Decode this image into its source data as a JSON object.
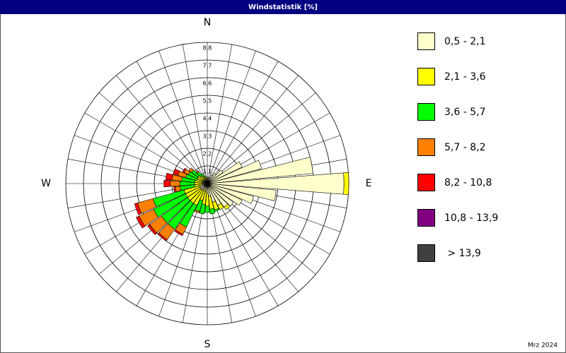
{
  "chart_data": {
    "type": "windrose",
    "title": "Windstatistik [%]",
    "footer": "Mrz 2024",
    "compass_labels": [
      {
        "value": 0,
        "label": "N"
      },
      {
        "value": 90,
        "label": "E"
      },
      {
        "value": 180,
        "label": "S"
      },
      {
        "value": 270,
        "label": "W"
      }
    ],
    "x": [
      0,
      10,
      20,
      30,
      40,
      50,
      60,
      70,
      80,
      90,
      100,
      110,
      120,
      130,
      140,
      150,
      160,
      170,
      180,
      190,
      200,
      210,
      220,
      230,
      240,
      250,
      260,
      270,
      280,
      290,
      300,
      310,
      320,
      330,
      340,
      350
    ],
    "xlim": [
      0,
      360
    ],
    "ylim": [
      0,
      8.8
    ],
    "yticks": [
      {
        "value": 1.1,
        "label": "1,1"
      },
      {
        "value": 2.2,
        "label": "2,2"
      },
      {
        "value": 3.3,
        "label": "3,3"
      },
      {
        "value": 4.4,
        "label": "4,4"
      },
      {
        "value": 5.5,
        "label": "5,5"
      },
      {
        "value": 6.6,
        "label": "6,6"
      },
      {
        "value": 7.7,
        "label": "7,7"
      },
      {
        "value": 8.8,
        "label": "8,8"
      }
    ],
    "grid": true,
    "legend": "right",
    "series": [
      {
        "name": "0,5 - 2,1",
        "color": "#ffffcc",
        "values": [
          0.3,
          0.3,
          0.4,
          0.6,
          0.8,
          1.2,
          2.4,
          3.5,
          6.6,
          8.5,
          4.3,
          3.0,
          2.4,
          2.0,
          1.8,
          1.5,
          1.2,
          0.8,
          0.6,
          0.5,
          0.4,
          0.5,
          0.5,
          0.5,
          0.5,
          0.5,
          0.3,
          0.3,
          0.3,
          0.3,
          0.3,
          0.3,
          0.3,
          0.3,
          0.3,
          0.3
        ]
      },
      {
        "name": "2,1 - 3,6",
        "color": "#ffff00",
        "values": [
          0.1,
          0,
          0,
          0,
          0,
          0,
          0,
          0,
          0,
          0.3,
          0,
          0,
          0,
          0,
          0.2,
          0.3,
          0.5,
          0.8,
          0.8,
          0.8,
          0.7,
          1.0,
          1.0,
          1.0,
          1.0,
          1.0,
          0.5,
          0.5,
          0.5,
          0.4,
          0.4,
          0.4,
          0.3,
          0.2,
          0.1,
          0.1
        ]
      },
      {
        "name": "3,6 - 5,7",
        "color": "#00ff00",
        "values": [
          0,
          0,
          0,
          0,
          0,
          0,
          0,
          0,
          0,
          0,
          0,
          0,
          0,
          0,
          0,
          0,
          0.1,
          0.3,
          0.4,
          0.6,
          0.7,
          1.5,
          2.0,
          2.0,
          2.2,
          2.0,
          0.9,
          0.9,
          0.8,
          0.7,
          0.6,
          0.5,
          0.3,
          0.2,
          0.1,
          0
        ]
      },
      {
        "name": "5,7 - 8,2",
        "color": "#ff8000",
        "values": [
          0,
          0,
          0,
          0,
          0,
          0,
          0,
          0,
          0,
          0,
          0,
          0,
          0,
          0,
          0,
          0,
          0,
          0,
          0,
          0,
          0.1,
          0.5,
          0.8,
          0.9,
          1.0,
          1.0,
          0.3,
          0.6,
          0.6,
          0.5,
          0.3,
          0.2,
          0.1,
          0,
          0,
          0
        ]
      },
      {
        "name": "8,2 - 10,8",
        "color": "#ff0000",
        "values": [
          0,
          0,
          0,
          0,
          0,
          0,
          0,
          0,
          0,
          0,
          0,
          0,
          0,
          0,
          0,
          0,
          0,
          0,
          0,
          0,
          0,
          0.1,
          0.1,
          0.15,
          0.2,
          0.2,
          0.1,
          0.4,
          0.4,
          0.3,
          0.1,
          0,
          0,
          0,
          0,
          0
        ]
      },
      {
        "name": "10,8 - 13,9",
        "color": "#800080",
        "values": [
          0,
          0,
          0,
          0,
          0,
          0,
          0,
          0,
          0,
          0,
          0,
          0,
          0,
          0,
          0,
          0,
          0,
          0,
          0,
          0,
          0,
          0,
          0,
          0,
          0,
          0,
          0,
          0,
          0,
          0,
          0,
          0,
          0,
          0,
          0,
          0
        ]
      },
      {
        "name": " > 13,9",
        "color": "#404040",
        "values": [
          0,
          0,
          0,
          0,
          0,
          0,
          0,
          0,
          0,
          0,
          0,
          0,
          0,
          0,
          0,
          0,
          0,
          0,
          0,
          0,
          0,
          0,
          0,
          0,
          0,
          0,
          0,
          0,
          0,
          0,
          0,
          0,
          0,
          0,
          0,
          0
        ]
      }
    ]
  }
}
